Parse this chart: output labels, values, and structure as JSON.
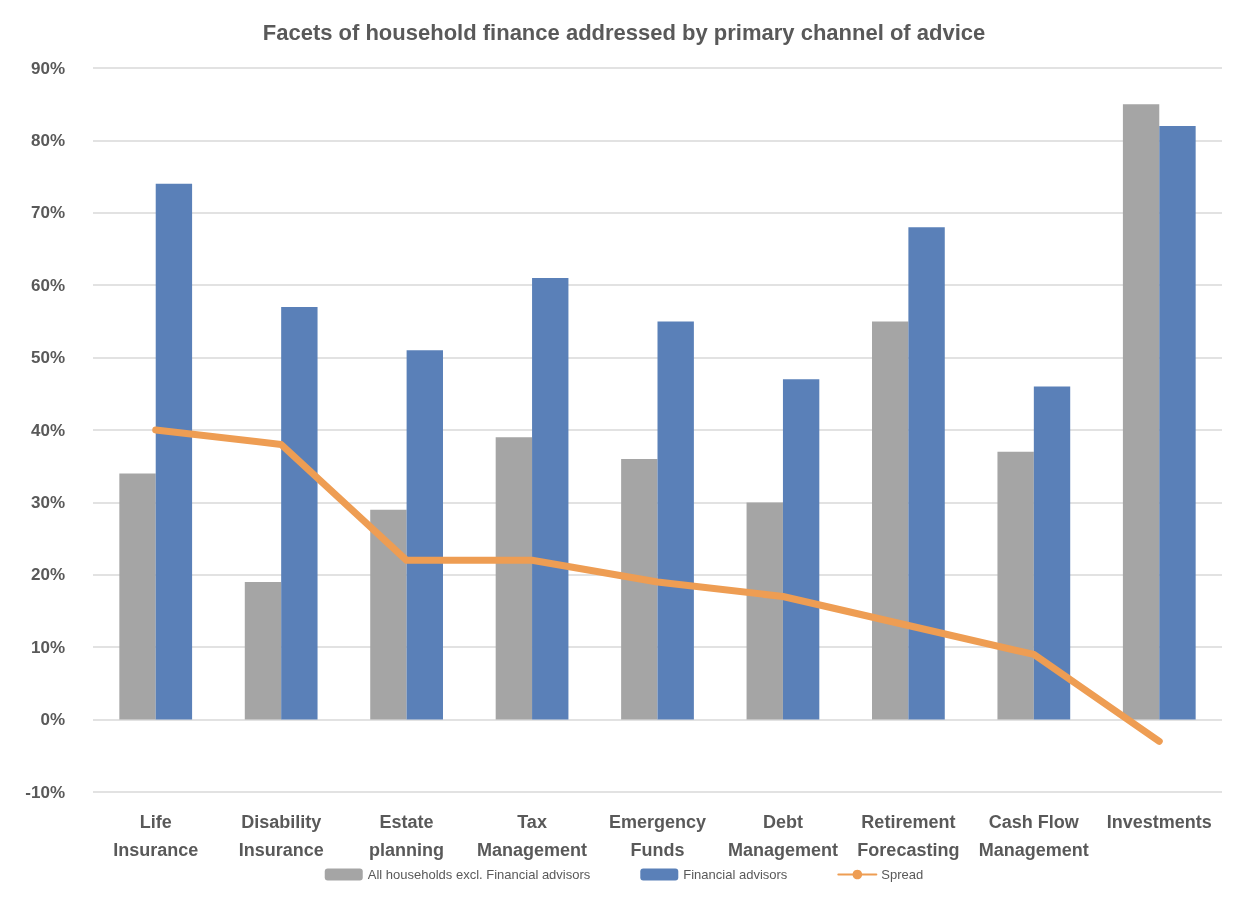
{
  "chart_data": {
    "type": "bar",
    "title": "Facets of household finance addressed by primary channel of advice",
    "categories": [
      "Life Insurance",
      "Disability Insurance",
      "Estate planning",
      "Tax Management",
      "Emergency Funds",
      "Debt Management",
      "Retirement Forecasting",
      "Cash Flow Management",
      "Investments"
    ],
    "series": [
      {
        "name": "All households excl. Financial advisors",
        "color": "#a5a5a5",
        "values": [
          34,
          19,
          29,
          39,
          36,
          30,
          55,
          37,
          85
        ]
      },
      {
        "name": "Financial advisors",
        "color": "#5a80b8",
        "values": [
          74,
          57,
          51,
          61,
          55,
          47,
          68,
          46,
          82
        ]
      },
      {
        "name": "Spread",
        "type": "line",
        "color": "#ee9d53",
        "values": [
          40,
          38,
          22,
          22,
          19,
          17,
          13,
          9,
          -3
        ]
      }
    ],
    "ylim": [
      -10,
      90
    ],
    "yticks": [
      {
        "value": -10,
        "label": "-10%"
      },
      {
        "value": 0,
        "label": "0%"
      },
      {
        "value": 10,
        "label": "10%"
      },
      {
        "value": 20,
        "label": "20%"
      },
      {
        "value": 30,
        "label": "30%"
      },
      {
        "value": 40,
        "label": "40%"
      },
      {
        "value": 50,
        "label": "50%"
      },
      {
        "value": 60,
        "label": "60%"
      },
      {
        "value": 70,
        "label": "70%"
      },
      {
        "value": 80,
        "label": "80%"
      },
      {
        "value": 90,
        "label": "90%"
      }
    ],
    "grid": "y",
    "legend": "bottom",
    "marker": "none",
    "line_style": "solid"
  }
}
